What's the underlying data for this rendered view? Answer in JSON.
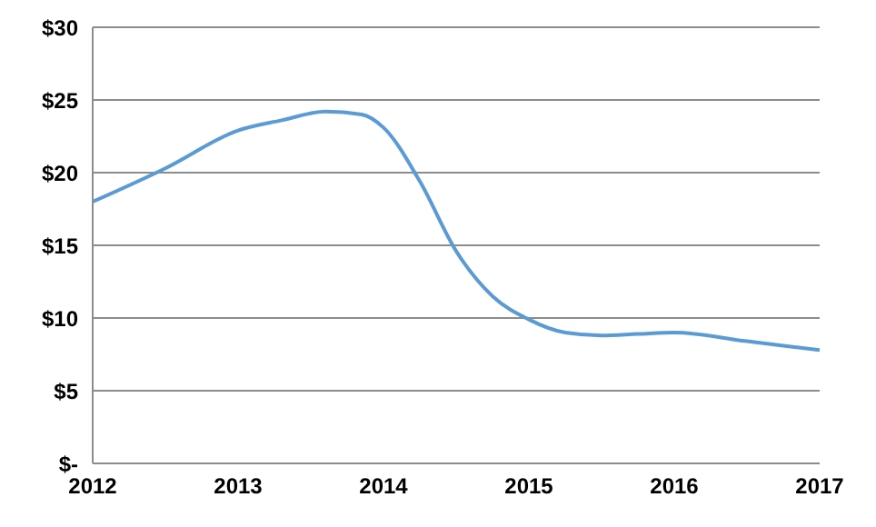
{
  "chart_data": {
    "type": "line",
    "x": [
      2012,
      2012.5,
      2013,
      2013.3,
      2013.6,
      2013.85,
      2014,
      2014.25,
      2014.5,
      2014.75,
      2015,
      2015.25,
      2015.5,
      2015.75,
      2016,
      2016.5,
      2017
    ],
    "series": [
      {
        "color": "#5b9bd5",
        "values": [
          18,
          20.3,
          22.9,
          23.6,
          24.2,
          24,
          23.1,
          19.4,
          14.6,
          11.5,
          9.9,
          9,
          8.8,
          8.9,
          9,
          8.4,
          7.8
        ]
      }
    ],
    "xlim": [
      2012,
      2017
    ],
    "xticks": [
      2012,
      2013,
      2014,
      2015,
      2016,
      2017
    ],
    "ylim": [
      0,
      30
    ],
    "yticks": [
      {
        "value": 0,
        "label": "$-"
      },
      {
        "value": 5,
        "label": "$5"
      },
      {
        "value": 10,
        "label": "$10"
      },
      {
        "value": 15,
        "label": "$15"
      },
      {
        "value": 20,
        "label": "$20"
      },
      {
        "value": 25,
        "label": "$25"
      },
      {
        "value": 30,
        "label": "$30"
      }
    ],
    "grid": "y",
    "legend": false,
    "marker": "none",
    "line_style": "solid"
  }
}
